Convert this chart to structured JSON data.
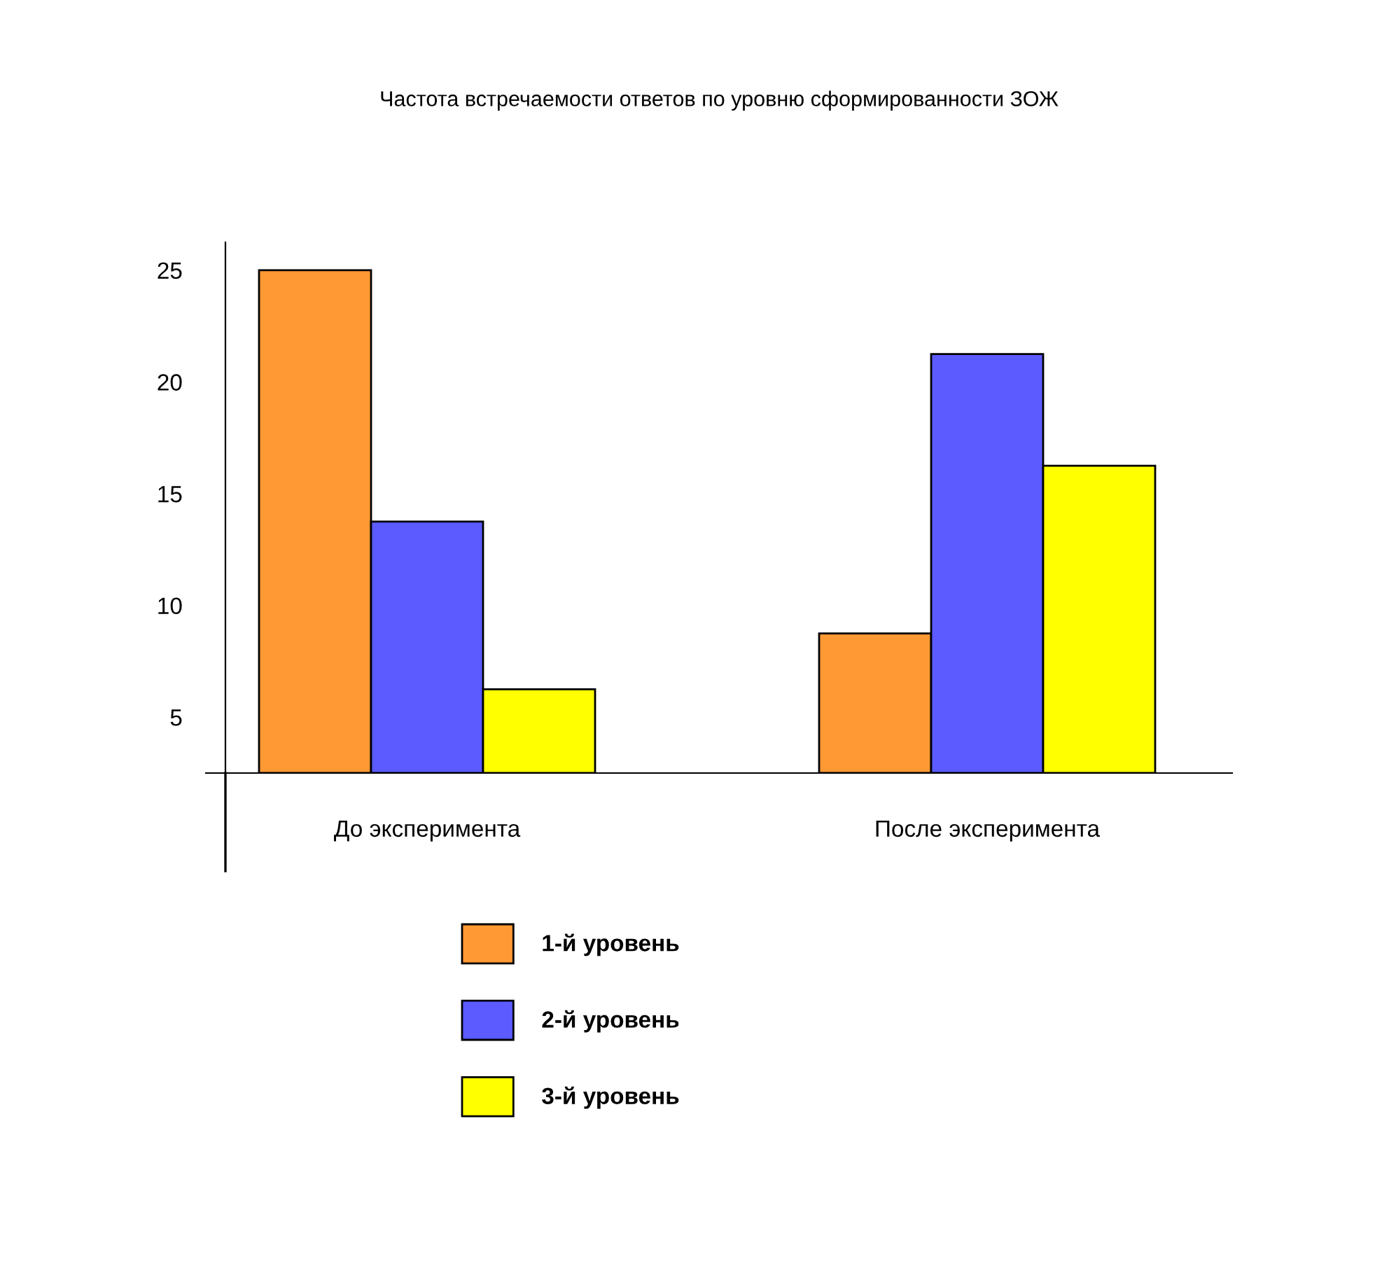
{
  "chart_data": {
    "type": "bar",
    "title": "Частота встречаемости ответов по уровню сформированности ЗОЖ",
    "categories": [
      "До эксперимента",
      "После эксперимента"
    ],
    "series": [
      {
        "name": "1-й уровень",
        "color": "#ff9933",
        "values": [
          25,
          8.75
        ]
      },
      {
        "name": "2-й уровень",
        "color": "#5b5bff",
        "values": [
          13.75,
          21.25
        ]
      },
      {
        "name": "3-й уровень",
        "color": "#ffff00",
        "values": [
          6.25,
          16.25
        ]
      }
    ],
    "ylim": [
      2.5,
      26.25
    ],
    "yticks": [
      5,
      10,
      15,
      20,
      25
    ],
    "grid": false,
    "legend": "bottom"
  }
}
